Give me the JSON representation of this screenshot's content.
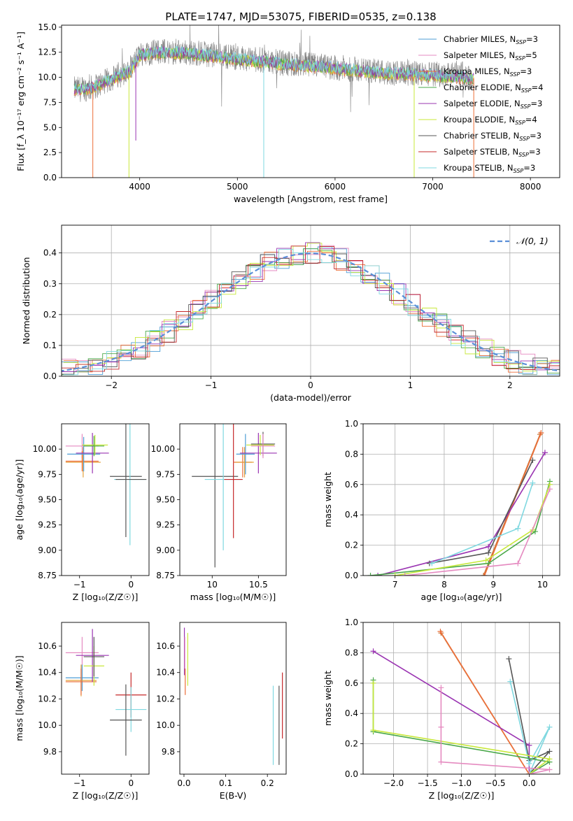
{
  "figure_title": "PLATE=1747, MJD=53075, FIBERID=0535, z=0.138",
  "colors": {
    "Chabrier MILES": "#4d9dd5",
    "Salpeter MILES": "#e5a13b",
    "Kroupa MILES": "#ec6e39",
    "Chabrier ELODIE": "#4aa84a",
    "Salpeter ELODIE": "#9a34b2",
    "Kroupa ELODIE": "#c8e83a",
    "Chabrier STELIB": "#555555",
    "Salpeter STELIB": "#c4282a",
    "Kroupa STELIB": "#7fd8e0",
    "pink": "#e58ac0",
    "brown": "#c8783a",
    "normal_curve": "#5b8fd8"
  },
  "chart_data": [
    {
      "id": "spectrum",
      "type": "line",
      "title": "PLATE=1747, MJD=53075, FIBERID=0535, z=0.138",
      "xlabel": "wavelength [Angstrom, rest frame]",
      "ylabel": "Flux [f_λ 10⁻¹⁷ erg cm⁻² s⁻¹ A⁻¹]",
      "xlim": [
        3200,
        8300
      ],
      "ylim": [
        0,
        15.2
      ],
      "xticks": [
        4000,
        5000,
        6000,
        7000,
        8000
      ],
      "yticks": [
        0.0,
        2.5,
        5.0,
        7.5,
        10.0,
        12.5,
        15.0
      ],
      "legend_position": "top-right",
      "legend": [
        {
          "label": "Chabrier MILES, N",
          "sub": "SSP",
          "n": "=3",
          "key": "Chabrier MILES"
        },
        {
          "label": "Salpeter MILES, N",
          "sub": "SSP",
          "n": "=5",
          "key": "pink"
        },
        {
          "label": "Kroupa MILES, N",
          "sub": "SSP",
          "n": "=3",
          "key": "Kroupa MILES"
        },
        {
          "label": "Chabrier ELODIE, N",
          "sub": "SSP",
          "n": "=4",
          "key": "Chabrier ELODIE"
        },
        {
          "label": "Salpeter ELODIE, N",
          "sub": "SSP",
          "n": "=3",
          "key": "Salpeter ELODIE"
        },
        {
          "label": "Kroupa ELODIE, N",
          "sub": "SSP",
          "n": "=4",
          "key": "Kroupa ELODIE"
        },
        {
          "label": "Chabrier STELIB, N",
          "sub": "SSP",
          "n": "=3",
          "key": "Chabrier STELIB"
        },
        {
          "label": "Salpeter STELIB, N",
          "sub": "SSP",
          "n": "=3",
          "key": "Salpeter STELIB"
        },
        {
          "label": "Kroupa STELIB, N",
          "sub": "SSP",
          "n": "=3",
          "key": "Kroupa STELIB"
        }
      ],
      "data_trend": [
        [
          3330,
          8.8
        ],
        [
          3500,
          8.9
        ],
        [
          3700,
          9.8
        ],
        [
          3900,
          10.6
        ],
        [
          4000,
          12.3
        ],
        [
          4200,
          12.6
        ],
        [
          4500,
          12.5
        ],
        [
          5000,
          12.0
        ],
        [
          5500,
          11.4
        ],
        [
          6000,
          11.0
        ],
        [
          6500,
          10.5
        ],
        [
          7000,
          10.3
        ],
        [
          7300,
          10.4
        ],
        [
          7400,
          9.9
        ]
      ],
      "model_trend": [
        [
          3330,
          8.8
        ],
        [
          3500,
          8.9
        ],
        [
          3700,
          9.7
        ],
        [
          3900,
          10.6
        ],
        [
          4000,
          12.2
        ],
        [
          4200,
          12.5
        ],
        [
          4500,
          12.4
        ],
        [
          5000,
          11.8
        ],
        [
          5500,
          11.3
        ],
        [
          6000,
          10.9
        ],
        [
          6500,
          10.4
        ],
        [
          6800,
          10.3
        ],
        [
          7400,
          9.9
        ]
      ],
      "model_dips": [
        {
          "x": 3520,
          "y": 0.0,
          "key": "Kroupa MILES"
        },
        {
          "x": 3890,
          "y": 0.0,
          "key": "Kroupa ELODIE"
        },
        {
          "x": 3960,
          "y": 3.7,
          "key": "Salpeter ELODIE"
        },
        {
          "x": 5270,
          "y": 0.0,
          "key": "Kroupa STELIB"
        },
        {
          "x": 6810,
          "y": 0.0,
          "key": "Kroupa ELODIE"
        },
        {
          "x": 7420,
          "y": 0.0,
          "key": "Kroupa MILES"
        }
      ]
    },
    {
      "id": "residuals",
      "type": "histogram",
      "xlabel": "(data-model)/error",
      "ylabel": "Normed distribution",
      "xlim": [
        -2.5,
        2.5
      ],
      "ylim": [
        0,
        0.49
      ],
      "xticks": [
        -2,
        -1,
        0,
        1,
        2
      ],
      "yticks": [
        0.0,
        0.1,
        0.2,
        0.3,
        0.4
      ],
      "grid": true,
      "legend_position": "top-right",
      "legend_label": "𝒩(0, 1)",
      "bins": 35
    },
    {
      "id": "age-vs-Z",
      "type": "errorbar",
      "xlabel": "Z [log₁₀(Z/Z☉)]",
      "ylabel": "age  [log₁₀(age/yr)]",
      "xlim": [
        -1.35,
        0.35
      ],
      "ylim": [
        8.75,
        10.25
      ],
      "xticks": [
        -1,
        0
      ],
      "yticks": [
        8.75,
        9.0,
        9.25,
        9.5,
        9.75,
        10.0
      ],
      "ytick_labels": [
        "8.75",
        "9.00",
        "9.25",
        "9.50",
        "9.75",
        "10.00"
      ],
      "points": [
        {
          "key": "pink",
          "x": -0.95,
          "xerr": 0.32,
          "y": 10.03,
          "yerr": 0.12
        },
        {
          "key": "Salpeter MILES",
          "x": -0.93,
          "xerr": 0.34,
          "y": 9.87,
          "yerr": 0.15
        },
        {
          "key": "Kroupa MILES",
          "x": -0.95,
          "xerr": 0.32,
          "y": 9.88,
          "yerr": 0.1
        },
        {
          "key": "Chabrier MILES",
          "x": -0.92,
          "xerr": 0.32,
          "y": 9.95,
          "yerr": 0.17
        },
        {
          "key": "Salpeter ELODIE",
          "x": -0.75,
          "xerr": 0.32,
          "y": 9.96,
          "yerr": 0.2
        },
        {
          "key": "Kroupa ELODIE",
          "x": -0.7,
          "xerr": 0.25,
          "y": 10.04,
          "yerr": 0.1
        },
        {
          "key": "Chabrier ELODIE",
          "x": -0.72,
          "xerr": 0.2,
          "y": 10.03,
          "yerr": 0.1
        },
        {
          "key": "Chabrier STELIB",
          "x": -0.1,
          "xerr": 0.31,
          "y": 9.73,
          "yerr": 0.6
        },
        {
          "key": "Kroupa STELIB",
          "x": -0.02,
          "xerr": 0.31,
          "y": 9.7,
          "yerr": 0.65
        },
        {
          "key": "Chabrier STELIB",
          "x": 0.0,
          "xerr": 0.3,
          "y": 9.7,
          "yerr": 0.0
        }
      ]
    },
    {
      "id": "age-vs-mass",
      "type": "errorbar",
      "xlabel": "mass [log₁₀(M/M☉)]",
      "xlim": [
        9.65,
        10.8
      ],
      "ylim": [
        8.75,
        10.25
      ],
      "xticks": [
        10.0,
        10.5
      ],
      "yticks": [
        8.75,
        9.0,
        9.25,
        9.5,
        9.75,
        10.0
      ],
      "ytick_labels": [
        "8.75",
        "9.00",
        "9.25",
        "9.50",
        "9.75",
        "10.00"
      ],
      "points": [
        {
          "key": "Chabrier STELIB",
          "x": 10.03,
          "xerr": 0.25,
          "y": 9.73,
          "yerr": 0.9
        },
        {
          "key": "Kroupa STELIB",
          "x": 10.12,
          "xerr": 0.2,
          "y": 9.7,
          "yerr": 0.7
        },
        {
          "key": "Salpeter STELIB",
          "x": 10.23,
          "xerr": 0.1,
          "y": 9.7,
          "yerr": 0.58
        },
        {
          "key": "Salpeter STELIB",
          "x": 10.28,
          "xerr": 0.0,
          "y": 9.88,
          "yerr": 0.0
        },
        {
          "key": "Kroupa MILES",
          "x": 10.33,
          "xerr": 0.1,
          "y": 9.87,
          "yerr": 0.15
        },
        {
          "key": "Salpeter MILES",
          "x": 10.35,
          "xerr": 0.1,
          "y": 9.87,
          "yerr": 0.15
        },
        {
          "key": "Chabrier MILES",
          "x": 10.36,
          "xerr": 0.1,
          "y": 9.95,
          "yerr": 0.2
        },
        {
          "key": "Salpeter ELODIE",
          "x": 10.5,
          "xerr": 0.2,
          "y": 9.96,
          "yerr": 0.2
        },
        {
          "key": "Kroupa ELODIE",
          "x": 10.52,
          "xerr": 0.15,
          "y": 10.04,
          "yerr": 0.1
        },
        {
          "key": "Chabrier STELIB",
          "x": 10.55,
          "xerr": 0.13,
          "y": 10.05,
          "yerr": 0.12
        },
        {
          "key": "pink",
          "x": 10.55,
          "xerr": 0.13,
          "y": 10.03,
          "yerr": 0.12
        }
      ]
    },
    {
      "id": "cumulative-age",
      "type": "line",
      "xlabel": "age  [log₁₀(age/yr)]",
      "ylabel": "mass weight",
      "xlim": [
        6.35,
        10.35
      ],
      "ylim": [
        0,
        1.0
      ],
      "xticks": [
        7,
        8,
        9,
        10
      ],
      "yticks": [
        0.0,
        0.2,
        0.4,
        0.6,
        0.8,
        1.0
      ],
      "grid": true,
      "series": [
        {
          "key": "brown",
          "x": [
            8.8,
            9.95
          ],
          "y": [
            0.0,
            0.93
          ]
        },
        {
          "key": "Kroupa MILES",
          "x": [
            8.82,
            9.97
          ],
          "y": [
            0.0,
            0.94
          ]
        },
        {
          "key": "Salpeter ELODIE",
          "x": [
            6.65,
            8.9,
            10.05
          ],
          "y": [
            0.0,
            0.19,
            0.81
          ]
        },
        {
          "key": "Chabrier STELIB",
          "x": [
            7.7,
            8.9,
            9.8
          ],
          "y": [
            0.08,
            0.15,
            0.76
          ]
        },
        {
          "key": "Kroupa STELIB",
          "x": [
            7.75,
            9.5,
            9.8
          ],
          "y": [
            0.08,
            0.31,
            0.61
          ]
        },
        {
          "key": "Chabrier ELODIE",
          "x": [
            6.5,
            8.9,
            9.85,
            10.15
          ],
          "y": [
            0.0,
            0.08,
            0.29,
            0.62
          ]
        },
        {
          "key": "Kroupa ELODIE",
          "x": [
            7.0,
            8.85,
            9.8,
            10.15
          ],
          "y": [
            0.0,
            0.1,
            0.3,
            0.6
          ]
        },
        {
          "key": "pink",
          "x": [
            7.2,
            9.5,
            10.15
          ],
          "y": [
            0.0,
            0.08,
            0.57
          ]
        }
      ]
    },
    {
      "id": "mass-vs-Z",
      "type": "errorbar",
      "xlabel": "Z [log₁₀(Z/Z☉)]",
      "ylabel": "mass [log₁₀(M/M☉)]",
      "xlim": [
        -1.35,
        0.35
      ],
      "ylim": [
        9.63,
        10.78
      ],
      "xticks": [
        -1,
        0
      ],
      "yticks": [
        9.8,
        10.0,
        10.2,
        10.4,
        10.6
      ],
      "ytick_labels": [
        "9.8",
        "10.0",
        "10.2",
        "10.4",
        "10.6"
      ],
      "points": [
        {
          "key": "pink",
          "x": -0.95,
          "xerr": 0.32,
          "y": 10.55,
          "yerr": 0.12
        },
        {
          "key": "Chabrier MILES",
          "x": -0.95,
          "xerr": 0.32,
          "y": 10.36,
          "yerr": 0.1
        },
        {
          "key": "Salpeter MILES",
          "x": -0.97,
          "xerr": 0.3,
          "y": 10.34,
          "yerr": 0.12
        },
        {
          "key": "Kroupa MILES",
          "x": -0.97,
          "xerr": 0.3,
          "y": 10.33,
          "yerr": 0.1
        },
        {
          "key": "Salpeter ELODIE",
          "x": -0.75,
          "xerr": 0.32,
          "y": 10.53,
          "yerr": 0.2
        },
        {
          "key": "Kroupa ELODIE",
          "x": -0.72,
          "xerr": 0.2,
          "y": 10.45,
          "yerr": 0.15
        },
        {
          "key": "Chabrier STELIB",
          "x": -0.72,
          "xerr": 0.2,
          "y": 10.52,
          "yerr": 0.15
        },
        {
          "key": "Salpeter STELIB",
          "x": 0.0,
          "xerr": 0.3,
          "y": 10.23,
          "yerr": 0.17
        },
        {
          "key": "Kroupa STELIB",
          "x": 0.0,
          "xerr": 0.3,
          "y": 10.12,
          "yerr": 0.17
        },
        {
          "key": "Chabrier STELIB",
          "x": -0.1,
          "xerr": 0.31,
          "y": 10.04,
          "yerr": 0.27
        }
      ]
    },
    {
      "id": "mass-vs-EBV",
      "type": "errorbar",
      "xlabel": "E(B-V)",
      "xlim": [
        -0.01,
        0.245
      ],
      "ylim": [
        9.63,
        10.78
      ],
      "xticks": [
        0.0,
        0.1,
        0.2
      ],
      "xtick_labels": [
        "0.0",
        "0.1",
        "0.2"
      ],
      "yticks": [
        9.8,
        10.0,
        10.2,
        10.4,
        10.6
      ],
      "ytick_labels": [
        "9.8",
        "10.0",
        "10.2",
        "10.4",
        "10.6"
      ],
      "points": [
        {
          "key": "Salpeter ELODIE",
          "x": 0.001,
          "xerr": 0.0,
          "y": 10.56,
          "yerr": 0.18
        },
        {
          "key": "pink",
          "x": 0.002,
          "xerr": 0.0,
          "y": 10.55,
          "yerr": 0.12
        },
        {
          "key": "Kroupa MILES",
          "x": 0.003,
          "xerr": 0.0,
          "y": 10.33,
          "yerr": 0.1
        },
        {
          "key": "Kroupa ELODIE",
          "x": 0.009,
          "xerr": 0.0,
          "y": 10.5,
          "yerr": 0.2
        },
        {
          "key": "Kroupa STELIB",
          "x": 0.214,
          "xerr": 0.0,
          "y": 10.0,
          "yerr": 0.3
        },
        {
          "key": "Chabrier STELIB",
          "x": 0.228,
          "xerr": 0.0,
          "y": 10.0,
          "yerr": 0.3
        },
        {
          "key": "Salpeter STELIB",
          "x": 0.236,
          "xerr": 0.0,
          "y": 10.15,
          "yerr": 0.25
        }
      ]
    },
    {
      "id": "cumulative-Z",
      "type": "line",
      "xlabel": "Z [log₁₀(Z/Z☉)]",
      "ylabel": "mass weight",
      "xlim": [
        -2.45,
        0.45
      ],
      "ylim": [
        0,
        1.0
      ],
      "xticks": [
        -2.0,
        -1.5,
        -1.0,
        -0.5,
        0.0
      ],
      "xtick_labels": [
        "−2.0",
        "−1.5",
        "−1.0",
        "−0.5",
        "0.0"
      ],
      "yticks": [
        0.0,
        0.2,
        0.4,
        0.6,
        0.8,
        1.0
      ],
      "grid": true,
      "series": [
        {
          "key": "brown",
          "x": [
            -1.3,
            0.0
          ],
          "y": [
            0.93,
            0.0
          ]
        },
        {
          "key": "Kroupa MILES",
          "x": [
            -1.31,
            0.0
          ],
          "y": [
            0.94,
            0.0
          ]
        },
        {
          "key": "Salpeter ELODIE",
          "x": [
            -2.3,
            0.0,
            0.0
          ],
          "y": [
            0.81,
            0.19,
            0.0
          ]
        },
        {
          "key": "Chabrier STELIB",
          "x": [
            -0.3,
            0.0,
            0.3,
            0.0
          ],
          "y": [
            0.76,
            0.09,
            0.15,
            0.0
          ]
        },
        {
          "key": "Kroupa STELIB",
          "x": [
            -0.28,
            0.0,
            0.3,
            0.0
          ],
          "y": [
            0.61,
            0.07,
            0.31,
            0.0
          ]
        },
        {
          "key": "Chabrier ELODIE",
          "x": [
            -2.3,
            -2.3,
            0.3,
            0.0
          ],
          "y": [
            0.62,
            0.28,
            0.08,
            0.0
          ]
        },
        {
          "key": "Kroupa ELODIE",
          "x": [
            -2.3,
            -2.3,
            0.3,
            0.0
          ],
          "y": [
            0.6,
            0.29,
            0.1,
            0.0
          ]
        },
        {
          "key": "pink",
          "x": [
            -1.3,
            -1.3,
            -1.3,
            0.3,
            0.0
          ],
          "y": [
            0.57,
            0.31,
            0.08,
            0.03,
            0.0
          ]
        }
      ]
    }
  ]
}
